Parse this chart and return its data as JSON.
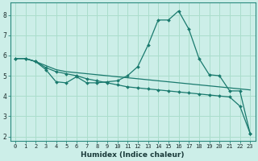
{
  "xlabel": "Humidex (Indice chaleur)",
  "bg_color": "#cceee8",
  "grid_color": "#aaddcc",
  "line_color": "#1a7a6e",
  "xlim": [
    -0.5,
    23.5
  ],
  "ylim": [
    1.8,
    8.6
  ],
  "xticks": [
    0,
    1,
    2,
    3,
    4,
    5,
    6,
    7,
    8,
    9,
    10,
    11,
    12,
    13,
    14,
    15,
    16,
    17,
    18,
    19,
    20,
    21,
    22,
    23
  ],
  "yticks": [
    2,
    3,
    4,
    5,
    6,
    7,
    8
  ],
  "line1_x": [
    0,
    1,
    2,
    3,
    4,
    5,
    6,
    7,
    8,
    9,
    10,
    11,
    12,
    13,
    14,
    15,
    16,
    17,
    18,
    19,
    20,
    21,
    22,
    23
  ],
  "line1_y": [
    5.85,
    5.85,
    5.7,
    5.3,
    4.7,
    4.65,
    4.95,
    4.65,
    4.65,
    4.7,
    4.75,
    5.0,
    5.45,
    6.5,
    7.75,
    7.75,
    8.2,
    7.3,
    5.85,
    5.05,
    5.0,
    4.25,
    4.25,
    2.15
  ],
  "line2_x": [
    0,
    1,
    2,
    3,
    4,
    5,
    6,
    7,
    8,
    9,
    10,
    11,
    12,
    13,
    14,
    15,
    16,
    17,
    18,
    19,
    20,
    21,
    22,
    23
  ],
  "line2_y": [
    5.85,
    5.85,
    5.7,
    5.5,
    5.3,
    5.2,
    5.15,
    5.1,
    5.05,
    5.0,
    4.95,
    4.9,
    4.85,
    4.8,
    4.75,
    4.7,
    4.65,
    4.6,
    4.55,
    4.5,
    4.45,
    4.4,
    4.35,
    4.3
  ],
  "line3_x": [
    0,
    1,
    2,
    3,
    4,
    5,
    6,
    7,
    8,
    9,
    10,
    11,
    12,
    13,
    14,
    15,
    16,
    17,
    18,
    19,
    20,
    21,
    22,
    23
  ],
  "line3_y": [
    5.85,
    5.85,
    5.7,
    5.4,
    5.2,
    5.1,
    5.0,
    4.85,
    4.75,
    4.65,
    4.55,
    4.45,
    4.4,
    4.35,
    4.3,
    4.25,
    4.2,
    4.15,
    4.1,
    4.05,
    4.0,
    3.95,
    3.5,
    2.15
  ],
  "tick_fontsize": 5.0,
  "xlabel_fontsize": 6.5
}
